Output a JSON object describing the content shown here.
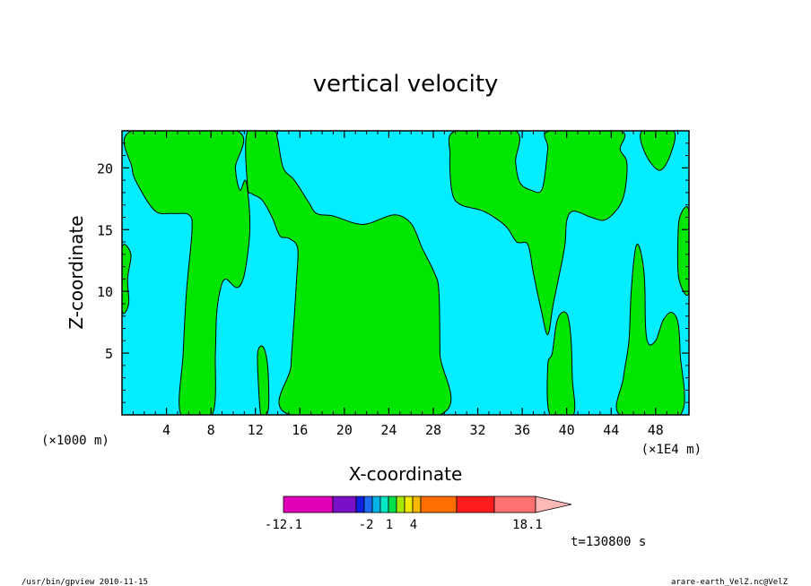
{
  "chart_data": {
    "type": "contour",
    "title": "vertical velocity",
    "xlabel": "X-coordinate",
    "ylabel": "Z-coordinate",
    "x_unit_left": "(×1000 m)",
    "x_unit_right": "(×1E4 m)",
    "x_ticks": [
      4,
      8,
      12,
      16,
      20,
      24,
      28,
      32,
      36,
      40,
      44,
      48
    ],
    "y_ticks": [
      5,
      10,
      15,
      20
    ],
    "xlim": [
      0,
      51
    ],
    "ylim": [
      0,
      23
    ],
    "time_label": "t=130800 s",
    "colorbar": {
      "min_label": "-12.1",
      "labels": [
        "-2",
        "1",
        "4"
      ],
      "max_label": "18.1",
      "colors": [
        "#e000b8",
        "#7a10c8",
        "#1020e0",
        "#1a6cf2",
        "#00b4e8",
        "#00e8c8",
        "#00e04a",
        "#a8e800",
        "#f0e800",
        "#f8b800",
        "#ff6e00",
        "#ff1c1c",
        "#ff7070",
        "#ffb8b8"
      ]
    },
    "fill_colors": {
      "negative": "#00eeff",
      "positive": "#00e600"
    },
    "regions_positive": [
      {
        "name": "plume-left-edge",
        "outline": [
          [
            0,
            13.5
          ],
          [
            0.8,
            13
          ],
          [
            0.5,
            11
          ],
          [
            0.6,
            9
          ],
          [
            0,
            8.5
          ]
        ]
      },
      {
        "name": "plume-upper-left",
        "outline": [
          [
            0.9,
            23
          ],
          [
            0.9,
            20
          ],
          [
            1.5,
            18.5
          ],
          [
            3,
            16.5
          ],
          [
            4.5,
            16.3
          ],
          [
            6,
            16.2
          ],
          [
            6.3,
            15
          ],
          [
            5.8,
            10
          ],
          [
            5.5,
            5
          ],
          [
            5.3,
            0
          ],
          [
            8.1,
            0
          ],
          [
            8.4,
            5
          ],
          [
            8.5,
            8
          ],
          [
            8.8,
            10
          ],
          [
            9.3,
            11
          ],
          [
            10.3,
            10.3
          ],
          [
            10.9,
            11
          ],
          [
            11.3,
            13
          ],
          [
            11.5,
            15
          ],
          [
            11.4,
            17.3
          ],
          [
            11.1,
            19
          ],
          [
            10.6,
            18.2
          ],
          [
            10.2,
            20
          ],
          [
            10.3,
            23
          ]
        ]
      },
      {
        "name": "plume-mid",
        "outline": [
          [
            11.3,
            23
          ],
          [
            11.3,
            18.5
          ],
          [
            11.7,
            17.9
          ],
          [
            12.6,
            17.4
          ],
          [
            13.5,
            16
          ],
          [
            14.2,
            14.5
          ],
          [
            15,
            14.3
          ],
          [
            15.8,
            13.5
          ],
          [
            15.7,
            11
          ],
          [
            15.5,
            8
          ],
          [
            15.2,
            4
          ],
          [
            15.1,
            0
          ],
          [
            28.6,
            0
          ],
          [
            28.6,
            5
          ],
          [
            28.5,
            10
          ],
          [
            28.1,
            11.5
          ],
          [
            27,
            13.5
          ],
          [
            26,
            15.5
          ],
          [
            24.5,
            16.2
          ],
          [
            22.2,
            15.5
          ],
          [
            21,
            15.5
          ],
          [
            19,
            16.1
          ],
          [
            17.5,
            16.3
          ],
          [
            16.8,
            17.2
          ],
          [
            15.5,
            19
          ],
          [
            14.5,
            20
          ],
          [
            14,
            22.3
          ],
          [
            13.6,
            23
          ]
        ]
      },
      {
        "name": "plume-thin",
        "outline": [
          [
            12.5,
            0
          ],
          [
            12.3,
            2
          ],
          [
            12.2,
            5
          ],
          [
            12.7,
            5.5
          ],
          [
            13.1,
            4
          ],
          [
            13.2,
            1
          ],
          [
            13,
            0
          ]
        ]
      },
      {
        "name": "plume-right-upper",
        "outline": [
          [
            30,
            23
          ],
          [
            29.5,
            21
          ],
          [
            29.7,
            18
          ],
          [
            30.5,
            17
          ],
          [
            32.5,
            16.5
          ],
          [
            34.5,
            15.3
          ],
          [
            35.5,
            14
          ],
          [
            36.5,
            13.8
          ],
          [
            37,
            11.5
          ],
          [
            37.7,
            8.5
          ],
          [
            38.3,
            6.5
          ],
          [
            38.8,
            9
          ],
          [
            39.8,
            13.5
          ],
          [
            40,
            15.7
          ],
          [
            40.6,
            16.5
          ],
          [
            42.2,
            16
          ],
          [
            43.5,
            15.8
          ],
          [
            44.8,
            17
          ],
          [
            45.3,
            18.5
          ],
          [
            45.4,
            20.5
          ],
          [
            44.8,
            21.5
          ],
          [
            44.8,
            23
          ],
          [
            38.5,
            23
          ],
          [
            38.3,
            21.5
          ],
          [
            37.8,
            18.3
          ],
          [
            36.8,
            18.2
          ],
          [
            35.8,
            18.8
          ],
          [
            35.4,
            20.5
          ],
          [
            35.4,
            23
          ]
        ]
      },
      {
        "name": "plume-right-lower",
        "outline": [
          [
            38.5,
            0
          ],
          [
            38.3,
            4
          ],
          [
            38.7,
            5
          ],
          [
            39.1,
            7.5
          ],
          [
            39.6,
            8.3
          ],
          [
            40.1,
            8
          ],
          [
            40.4,
            6
          ],
          [
            40.5,
            3
          ],
          [
            40.6,
            0
          ]
        ]
      },
      {
        "name": "plume-far-right",
        "outline": [
          [
            44.8,
            0
          ],
          [
            45.1,
            3
          ],
          [
            45.6,
            6
          ],
          [
            45.8,
            10
          ],
          [
            46.2,
            13.5
          ],
          [
            46.6,
            13.4
          ],
          [
            47,
            11
          ],
          [
            47.1,
            7
          ],
          [
            47.4,
            5.7
          ],
          [
            48,
            6
          ],
          [
            48.3,
            6.7
          ],
          [
            48.7,
            7.7
          ],
          [
            49.4,
            8.3
          ],
          [
            50,
            7.5
          ],
          [
            50.2,
            5
          ],
          [
            50.2,
            0
          ]
        ]
      },
      {
        "name": "plume-top-right",
        "outline": [
          [
            46.8,
            23
          ],
          [
            47,
            21.3
          ],
          [
            48.3,
            19.8
          ],
          [
            49.3,
            21
          ],
          [
            49.6,
            23
          ]
        ]
      },
      {
        "name": "plume-right-edge",
        "outline": [
          [
            51,
            16.4
          ],
          [
            50.2,
            16.1
          ],
          [
            50,
            14
          ],
          [
            50.1,
            11
          ],
          [
            51,
            10
          ]
        ]
      }
    ]
  },
  "footer": {
    "left": "/usr/bin/gpview   2010-11-15",
    "right": "arare-earth_VelZ.nc@VelZ"
  }
}
